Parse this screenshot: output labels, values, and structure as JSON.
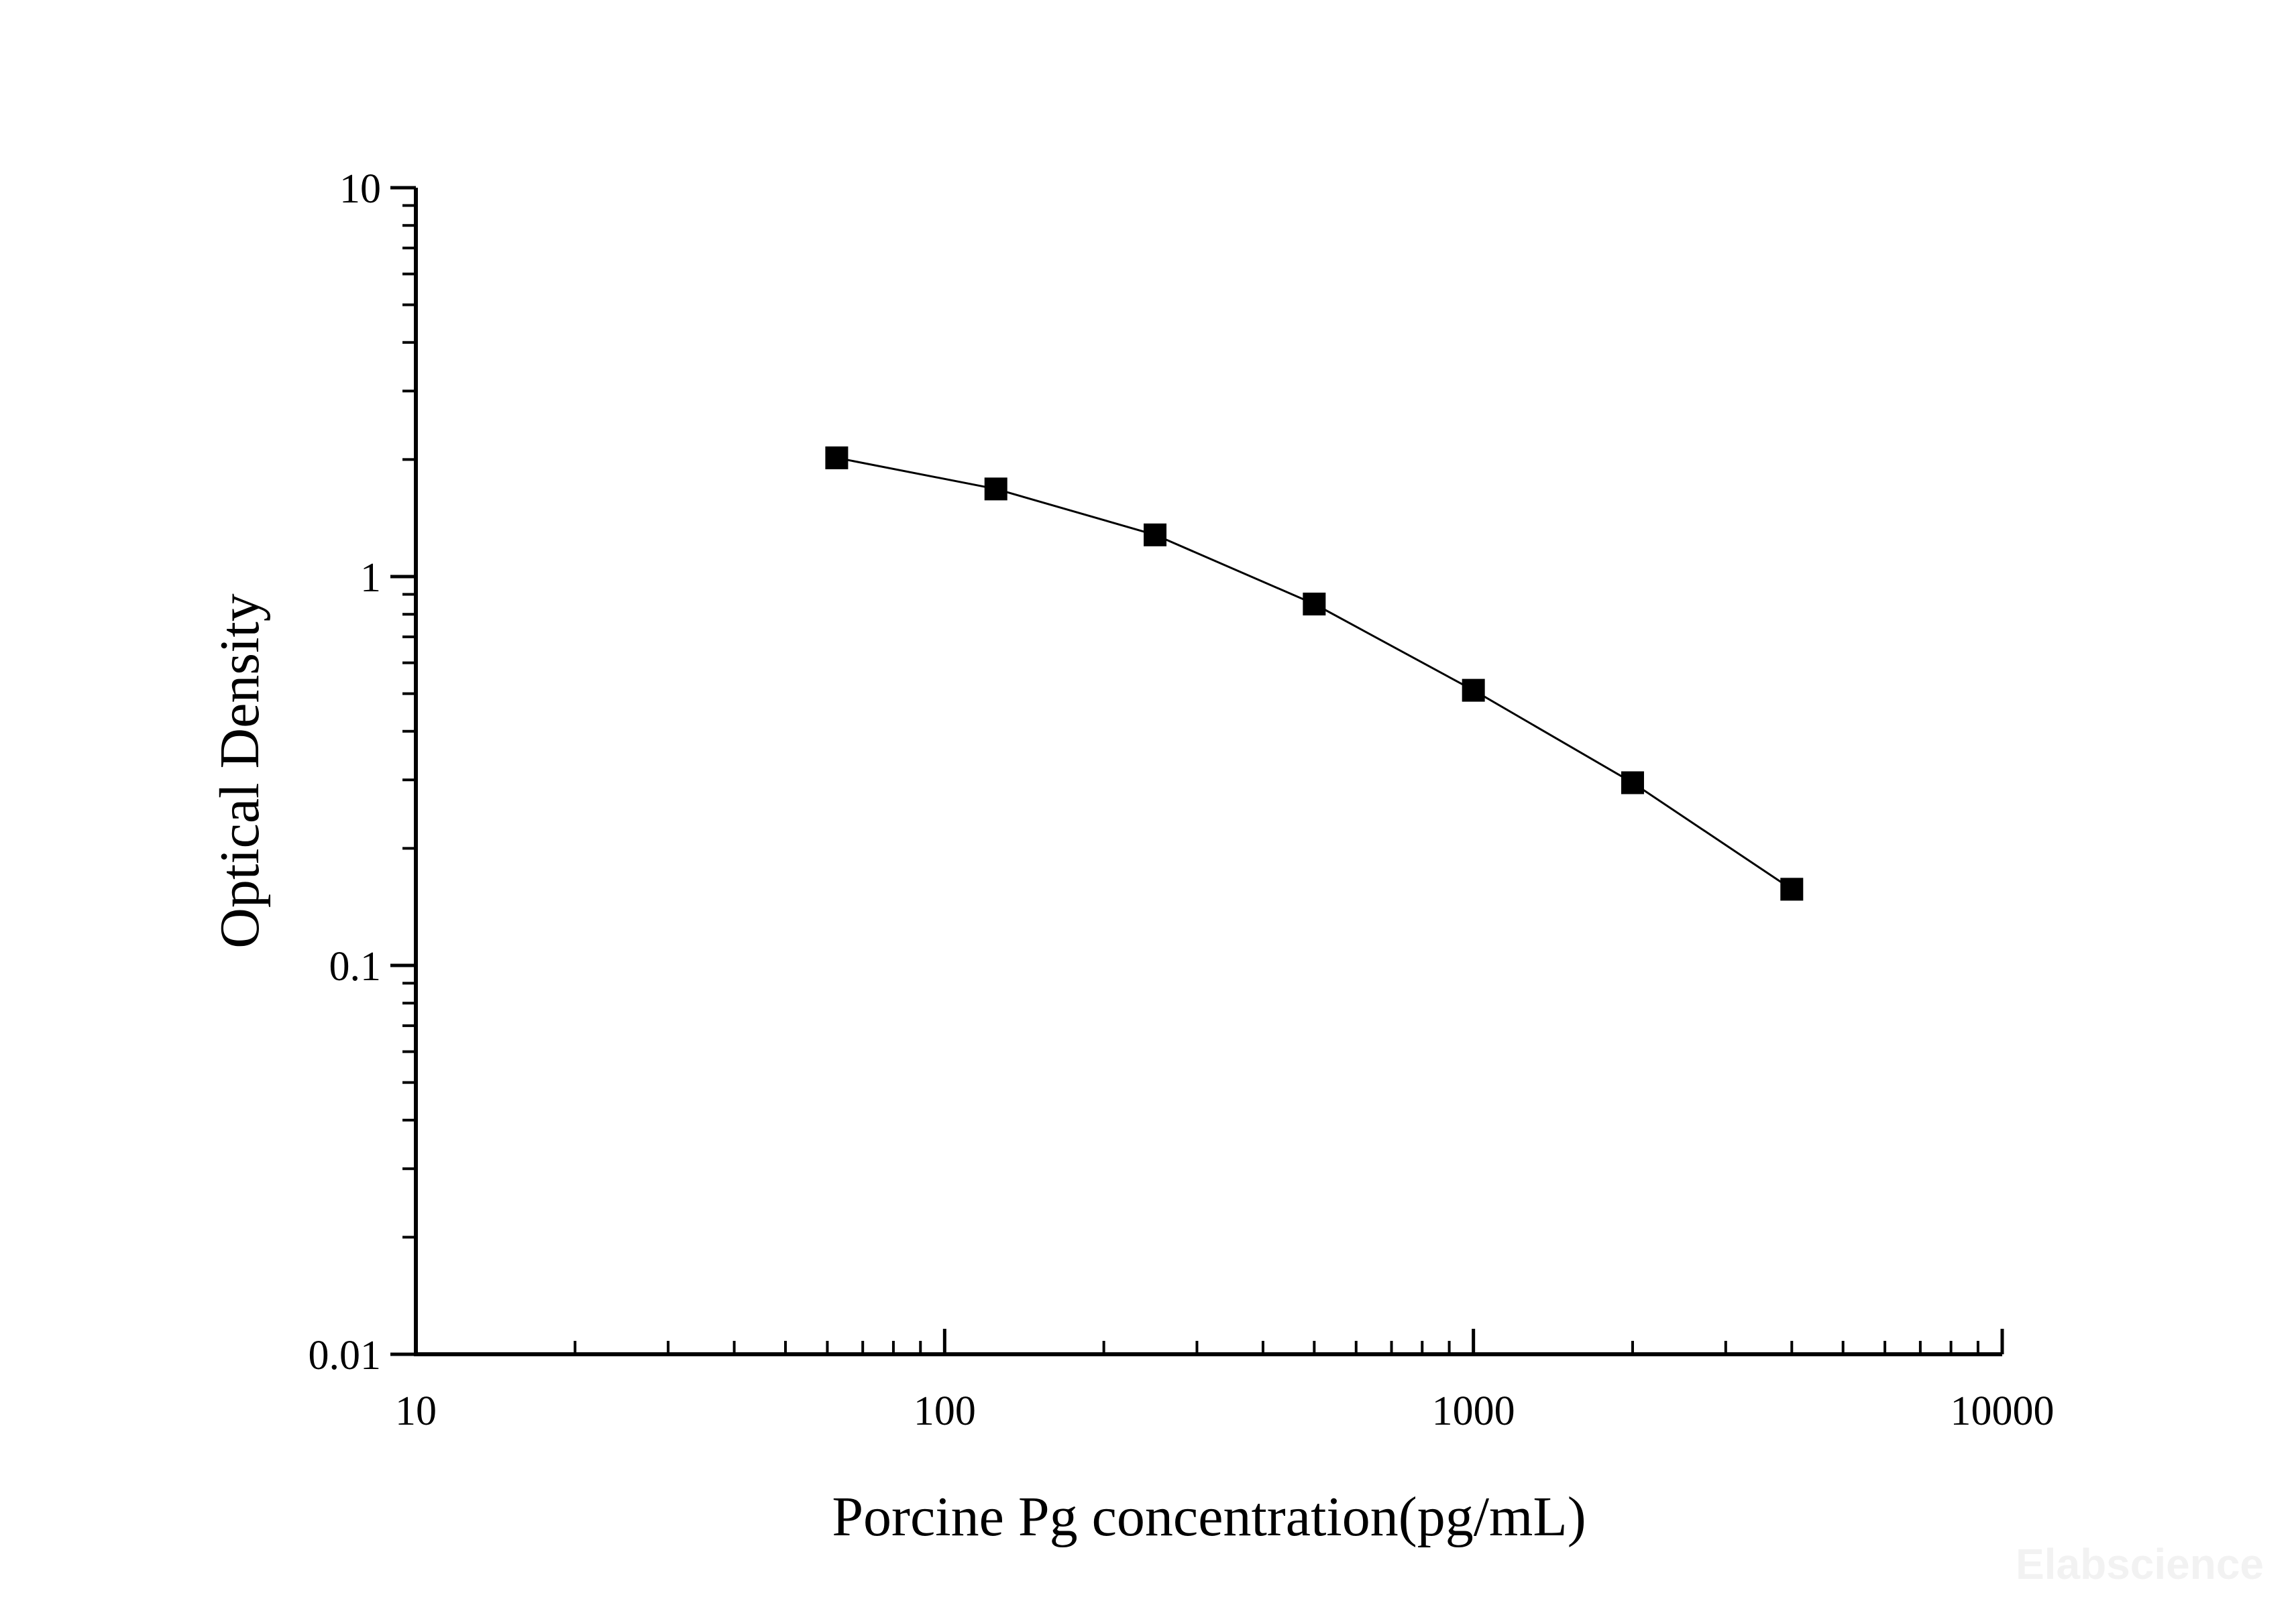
{
  "watermark": "Elabscience",
  "colors": {
    "axis": "#000000",
    "series": "#000000",
    "background": "#ffffff",
    "watermark": "#f2f2f2"
  },
  "chart_data": {
    "type": "line",
    "title": "",
    "xlabel": "Porcine Pg concentration(pg/mL)",
    "ylabel": "Optical Density",
    "x_scale": "log",
    "y_scale": "log",
    "xlim": [
      10,
      10000
    ],
    "ylim": [
      0.01,
      10
    ],
    "x_tick_labels": [
      "10",
      "100",
      "1000",
      "10000"
    ],
    "y_tick_labels": [
      "0.01",
      "0.1",
      "1",
      "10"
    ],
    "grid": false,
    "legend": "none",
    "marker": "square",
    "series": [
      {
        "x": [
          62.5,
          125,
          250,
          500,
          1000,
          2000,
          4000
        ],
        "y": [
          2.02,
          1.68,
          1.28,
          0.85,
          0.51,
          0.295,
          0.157
        ]
      }
    ]
  }
}
